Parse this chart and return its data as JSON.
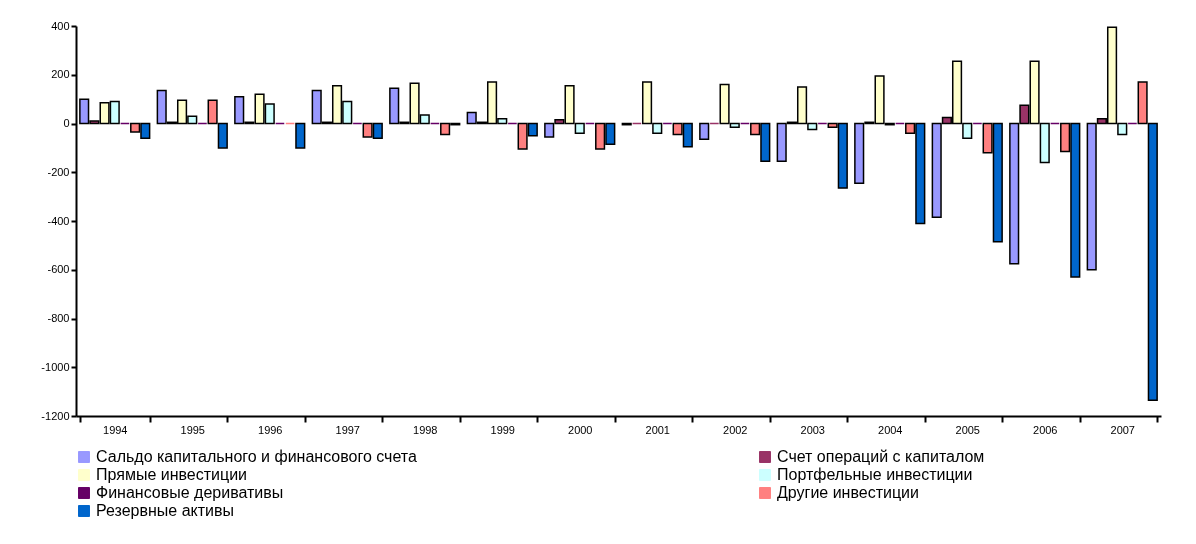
{
  "chart_data": {
    "type": "bar",
    "categories": [
      "1994",
      "1995",
      "1996",
      "1997",
      "1998",
      "1999",
      "2000",
      "2001",
      "2002",
      "2003",
      "2004",
      "2005",
      "2006",
      "2007"
    ],
    "series": [
      {
        "name": "Сальдо капитального и финансового счета",
        "color": "#9999ff",
        "values": [
          100,
          135,
          110,
          135,
          145,
          45,
          -55,
          -5,
          -65,
          -155,
          -245,
          -385,
          -575,
          -600
        ]
      },
      {
        "name": "Счет операций с капиталом",
        "color": "#993366",
        "values": [
          10,
          5,
          5,
          5,
          5,
          5,
          15,
          0,
          0,
          5,
          5,
          25,
          75,
          20
        ]
      },
      {
        "name": "Прямые инвестиции",
        "color": "#ffffcc",
        "values": [
          85,
          95,
          120,
          155,
          165,
          170,
          155,
          170,
          160,
          150,
          195,
          255,
          255,
          395
        ]
      },
      {
        "name": "Портфельные инвестиции",
        "color": "#ccffff",
        "values": [
          90,
          30,
          80,
          90,
          35,
          20,
          -40,
          -40,
          -15,
          -25,
          -5,
          -60,
          -160,
          -45
        ]
      },
      {
        "name": "Финансовые деривативы",
        "color": "#660066",
        "values": [
          0,
          0,
          0,
          0,
          0,
          0,
          0,
          0,
          0,
          0,
          0,
          0,
          0,
          0
        ]
      },
      {
        "name": "Другие инвестиции",
        "color": "#ff8080",
        "values": [
          -35,
          95,
          0,
          -55,
          -45,
          -105,
          -105,
          -45,
          -45,
          -15,
          -40,
          -120,
          -115,
          170
        ]
      },
      {
        "name": "Резервные активы",
        "color": "#0066cc",
        "values": [
          -60,
          -100,
          -100,
          -60,
          -5,
          -50,
          -85,
          -95,
          -155,
          -265,
          -410,
          -485,
          -630,
          -1135
        ]
      }
    ],
    "ylim": [
      -1200,
      400
    ],
    "yticks": [
      -1200,
      -1000,
      -800,
      -600,
      -400,
      -200,
      0,
      200,
      400
    ],
    "grid": false,
    "legend": "bottom"
  }
}
